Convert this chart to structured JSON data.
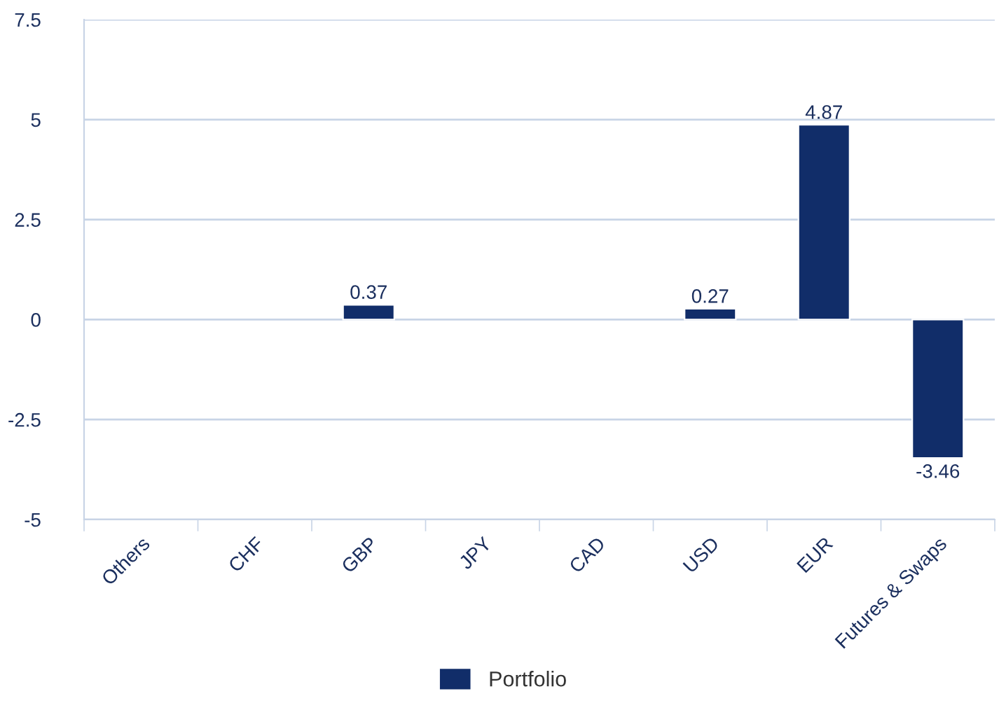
{
  "chart_data": {
    "type": "bar",
    "categories": [
      "Others",
      "CHF",
      "GBP",
      "JPY",
      "CAD",
      "USD",
      "EUR",
      "Futures & Swaps"
    ],
    "series": [
      {
        "name": "Portfolio",
        "color": "#112d69",
        "values": [
          null,
          null,
          0.37,
          null,
          null,
          0.27,
          4.87,
          -3.46
        ]
      }
    ],
    "ylim": [
      -5,
      7.5
    ],
    "yticks": [
      -5,
      -2.5,
      0,
      2.5,
      5,
      7.5
    ],
    "grid": "y",
    "legend": "bottom",
    "data_labels": true
  }
}
